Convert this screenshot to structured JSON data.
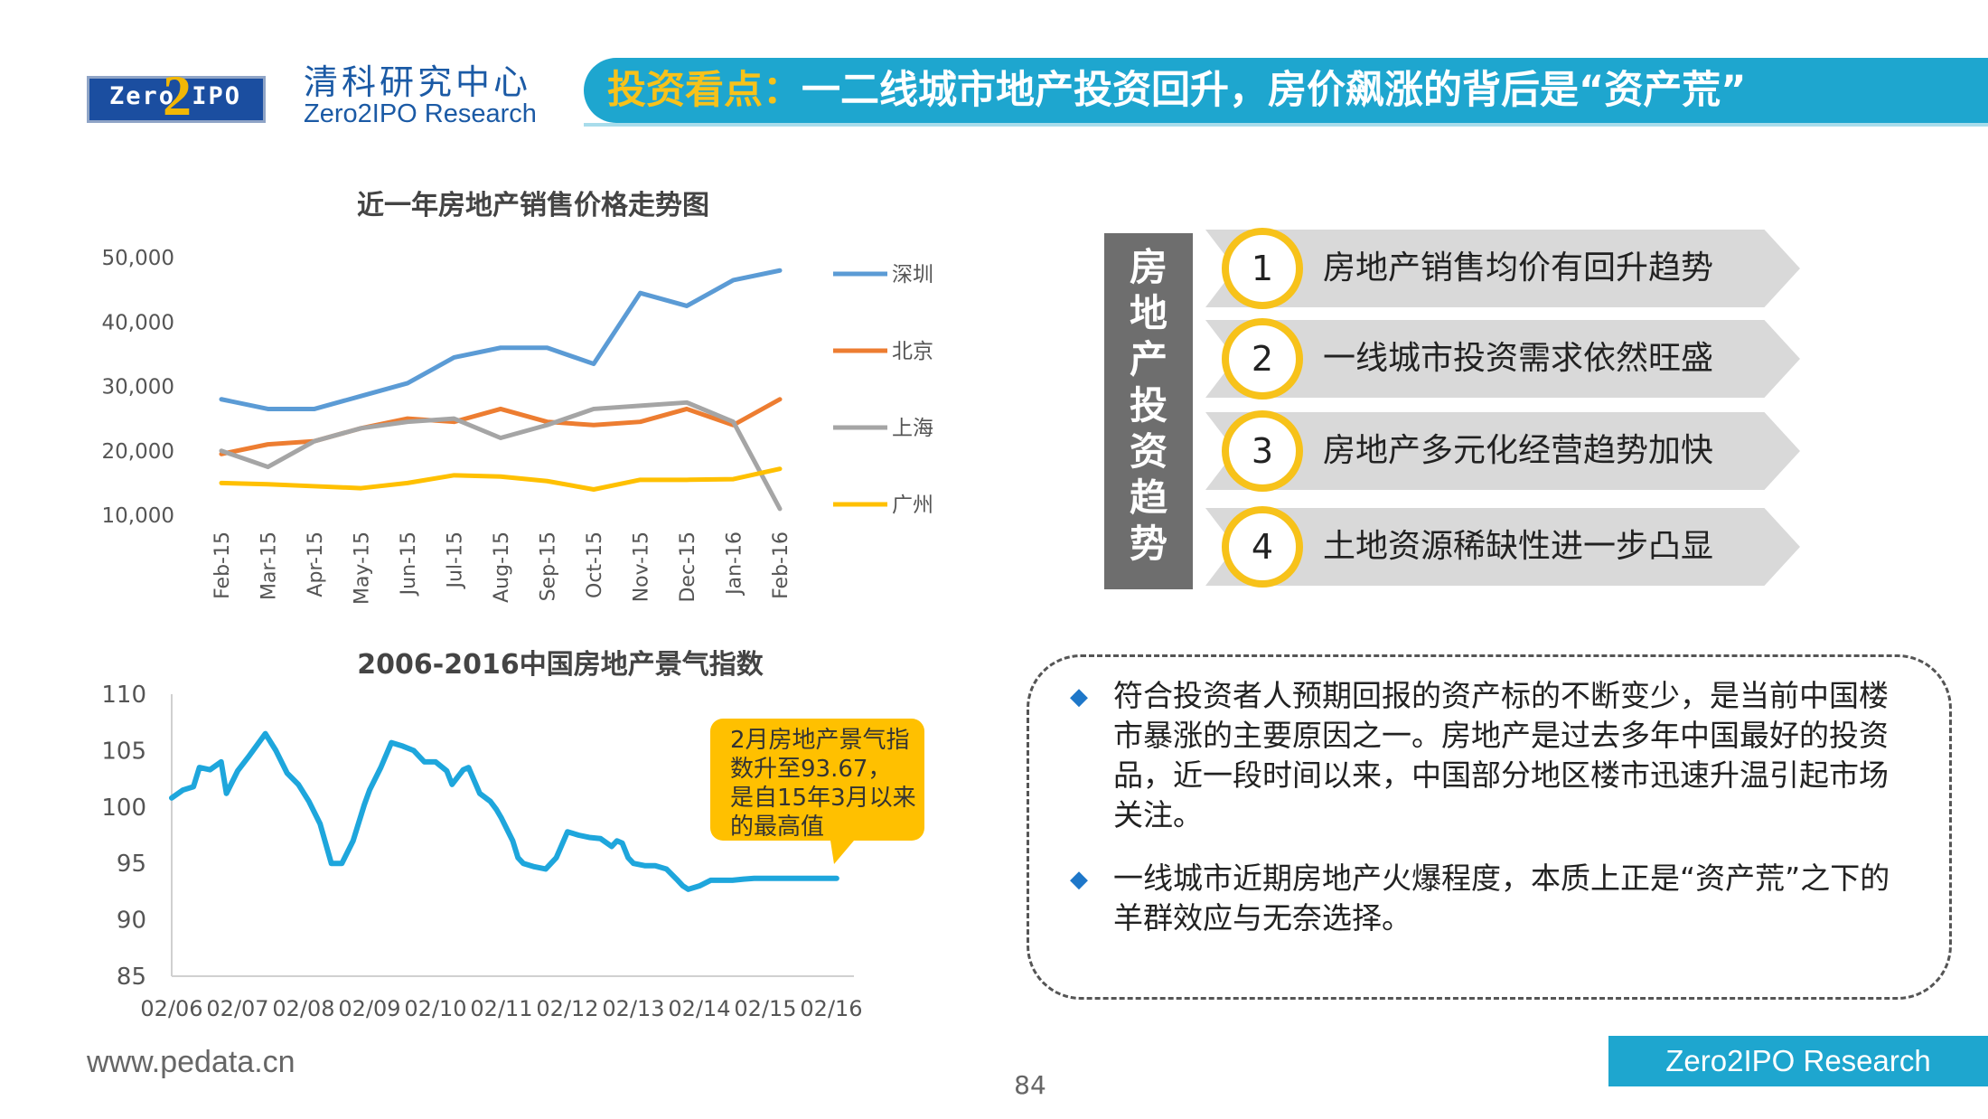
{
  "header": {
    "logo_text": "Zero  IPO",
    "logo_two": "2",
    "org_cn": "清科研究中心",
    "org_en": "Zero2IPO Research",
    "title_highlight": "投资看点：",
    "title_main": "一二线城市地产投资回升，房价飙涨的背后是“资产荒”"
  },
  "chart_data": [
    {
      "type": "line",
      "title": "近一年房地产销售价格走势图",
      "categories": [
        "Feb-15",
        "Mar-15",
        "Apr-15",
        "May-15",
        "Jun-15",
        "Jul-15",
        "Aug-15",
        "Sep-15",
        "Oct-15",
        "Nov-15",
        "Dec-15",
        "Jan-16",
        "Feb-16"
      ],
      "series": [
        {
          "name": "深圳",
          "color": "#5b9bd5",
          "values": [
            28000,
            26500,
            26500,
            28500,
            30500,
            34500,
            36000,
            36000,
            33500,
            44500,
            42500,
            46500,
            48000
          ]
        },
        {
          "name": "北京",
          "color": "#ed7d31",
          "values": [
            19500,
            21000,
            21500,
            23500,
            25000,
            24500,
            26500,
            24500,
            24000,
            24500,
            26500,
            24000,
            28000
          ]
        },
        {
          "name": "上海",
          "color": "#a5a5a5",
          "values": [
            20000,
            17500,
            21500,
            23500,
            24500,
            25000,
            22000,
            24000,
            26500,
            27000,
            27500,
            24500,
            11000
          ]
        },
        {
          "name": "广州",
          "color": "#ffc000",
          "values": [
            15000,
            14800,
            14500,
            14200,
            15000,
            16200,
            16000,
            15300,
            14000,
            15500,
            15500,
            15600,
            17200
          ]
        }
      ],
      "y_ticks": [
        "50,000",
        "40,000",
        "30,000",
        "20,000",
        "10,000"
      ],
      "ylim": [
        10000,
        50000
      ],
      "legend": "right",
      "grid": false
    },
    {
      "type": "line",
      "title": "2006-2016中国房地产景气指数",
      "x_labels": [
        "02/06",
        "02/07",
        "02/08",
        "02/09",
        "02/10",
        "02/11",
        "02/12",
        "02/13",
        "02/14",
        "02/15",
        "02/16"
      ],
      "y_ticks": [
        "110",
        "105",
        "100",
        "95",
        "90",
        "85"
      ],
      "ylim": [
        85,
        110
      ],
      "grid": false,
      "series": [
        {
          "name": "",
          "color": "#1ea6dc",
          "x": [
            2006.0,
            2006.17,
            2006.33,
            2006.42,
            2006.58,
            2006.75,
            2006.83,
            2007.0,
            2007.17,
            2007.42,
            2007.58,
            2007.75,
            2007.92,
            2008.08,
            2008.25,
            2008.42,
            2008.58,
            2008.75,
            2008.92,
            2009.0,
            2009.17,
            2009.33,
            2009.5,
            2009.67,
            2009.83,
            2010.0,
            2010.17,
            2010.25,
            2010.42,
            2010.5,
            2010.67,
            2010.83,
            2010.92,
            2011.0,
            2011.17,
            2011.25,
            2011.33,
            2011.5,
            2011.67,
            2011.83,
            2012.0,
            2012.17,
            2012.33,
            2012.5,
            2012.67,
            2012.75,
            2012.83,
            2012.92,
            2013.0,
            2013.17,
            2013.33,
            2013.5,
            2013.67,
            2013.75,
            2013.83,
            2014.0,
            2014.17,
            2014.33,
            2014.5,
            2014.67,
            2014.83,
            2015.0,
            2015.17,
            2015.33,
            2015.5,
            2015.67,
            2015.83,
            2016.0,
            2016.08
          ],
          "values": [
            100.8,
            101.5,
            101.8,
            103.5,
            103.3,
            104.0,
            101.2,
            103.2,
            104.5,
            106.5,
            105.0,
            103.0,
            102.0,
            100.5,
            98.5,
            95.0,
            95.0,
            97.0,
            100.2,
            101.5,
            103.5,
            105.7,
            105.4,
            105.0,
            104.0,
            104.0,
            103.2,
            102.0,
            103.3,
            103.5,
            101.2,
            100.5,
            99.8,
            99.0,
            97.0,
            95.5,
            95.0,
            94.7,
            94.5,
            95.5,
            97.8,
            97.5,
            97.3,
            97.2,
            96.5,
            97.0,
            96.8,
            95.5,
            95.0,
            94.8,
            94.8,
            94.5,
            93.5,
            93.0,
            92.7,
            93.0,
            93.5,
            93.5,
            93.5,
            93.6,
            93.67,
            93.67,
            93.67,
            93.67,
            93.67,
            93.67,
            93.67,
            93.67,
            93.67
          ]
        }
      ],
      "annotation": "2月房地产景气指数升至93.67，是自15年3月以来的最高值"
    }
  ],
  "factors": {
    "label": "房地产投资趋势",
    "items": [
      {
        "num": "1",
        "text": "房地产销售均价有回升趋势"
      },
      {
        "num": "2",
        "text": "一线城市投资需求依然旺盛"
      },
      {
        "num": "3",
        "text": "房地产多元化经营趋势加快"
      },
      {
        "num": "4",
        "text": "土地资源稀缺性进一步凸显"
      }
    ]
  },
  "notes": {
    "bullet": "◆",
    "items": [
      "符合投资者人预期回报的资产标的不断变少，是当前中国楼市暴涨的主要原因之一。房地产是过去多年中国最好的投资品，近一段时间以来，中国部分地区楼市迅速升温引起市场关注。",
      "一线城市近期房地产火爆程度，本质上正是“资产荒”之下的羊群效应与无奈选择。"
    ]
  },
  "footer": {
    "site": "www.pedata.cn",
    "page": "84",
    "brand": "Zero2IPO Research"
  }
}
